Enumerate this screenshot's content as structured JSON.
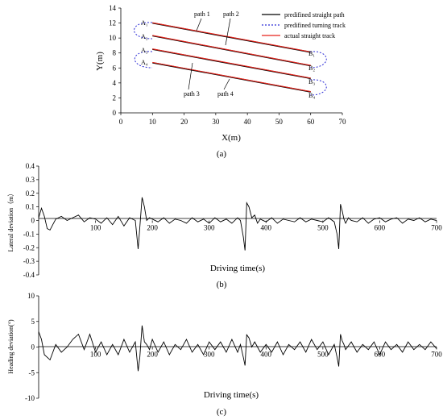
{
  "figure": {
    "captions": [
      "(a)",
      "(b)",
      "(c)"
    ]
  },
  "chart_data": [
    {
      "type": "line",
      "xlabel": "X(m)",
      "ylabel": "Y(m)",
      "xlim": [
        0,
        70
      ],
      "ylim": [
        0,
        14
      ],
      "xticks": [
        "0",
        "10",
        "20",
        "30",
        "40",
        "50",
        "60",
        "70"
      ],
      "yticks": [
        "0",
        "2",
        "4",
        "6",
        "8",
        "10",
        "12",
        "14"
      ],
      "legend": {
        "position": "top-right",
        "entries": [
          {
            "label": "predifined straight path",
            "color": "#000000",
            "style": "solid"
          },
          {
            "label": "predifined turning track",
            "color": "#2b2bd6",
            "style": "dotted"
          },
          {
            "label": "actual straight track",
            "color": "#e8231b",
            "style": "solid"
          }
        ]
      },
      "paths": [
        {
          "start": [
            10,
            12
          ],
          "end": [
            60,
            8.1
          ]
        },
        {
          "start": [
            10,
            10.3
          ],
          "end": [
            60,
            6.3
          ]
        },
        {
          "start": [
            10,
            8.5
          ],
          "end": [
            60,
            4.6
          ]
        },
        {
          "start": [
            10,
            6.7
          ],
          "end": [
            60,
            2.8
          ]
        }
      ],
      "start_labels": [
        "A₁",
        "A₂",
        "A₃",
        "A₄"
      ],
      "end_labels": [
        "B₁",
        "B₂",
        "B₃",
        "B₄"
      ],
      "annotations": [
        "path 1",
        "path 2",
        "path 3",
        "path 4"
      ]
    },
    {
      "type": "line",
      "xlabel": "Driving time(s)",
      "ylabel": "Lateral deviation（m）",
      "xlim": [
        0,
        700
      ],
      "ylim": [
        -0.4,
        0.4
      ],
      "xticks": [
        "100",
        "200",
        "300",
        "400",
        "500",
        "600",
        "700"
      ],
      "yticks": [
        "0.4",
        "0.3",
        "0.2",
        "0.1",
        "0",
        "-0.1",
        "-0.2",
        "-0.3",
        "-0.4"
      ],
      "x": [
        0,
        5,
        10,
        15,
        20,
        25,
        30,
        40,
        50,
        60,
        70,
        80,
        90,
        100,
        110,
        120,
        130,
        140,
        150,
        160,
        170,
        175,
        178,
        182,
        186,
        190,
        195,
        200,
        210,
        220,
        230,
        240,
        250,
        260,
        270,
        280,
        290,
        300,
        310,
        320,
        330,
        340,
        350,
        355,
        360,
        363,
        366,
        370,
        375,
        380,
        385,
        390,
        400,
        410,
        420,
        430,
        440,
        450,
        460,
        470,
        480,
        490,
        500,
        510,
        520,
        525,
        528,
        531,
        534,
        537,
        540,
        545,
        550,
        560,
        570,
        580,
        590,
        600,
        610,
        620,
        630,
        640,
        650,
        660,
        670,
        680,
        690,
        700
      ],
      "y": [
        0.02,
        0.09,
        0.03,
        -0.06,
        -0.07,
        -0.03,
        0.01,
        0.03,
        0.0,
        0.02,
        0.04,
        -0.01,
        0.02,
        0.01,
        -0.02,
        0.02,
        -0.03,
        0.03,
        -0.04,
        0.02,
        0.0,
        -0.21,
        -0.05,
        0.17,
        0.1,
        0.0,
        0.02,
        0.01,
        -0.01,
        0.02,
        -0.02,
        0.01,
        0.0,
        -0.02,
        0.02,
        -0.01,
        0.01,
        -0.02,
        0.02,
        -0.01,
        0.01,
        -0.02,
        0.02,
        0.0,
        -0.12,
        -0.22,
        0.13,
        0.1,
        0.02,
        0.04,
        -0.02,
        0.01,
        -0.01,
        0.02,
        -0.02,
        0.01,
        0.0,
        -0.01,
        0.02,
        -0.01,
        0.01,
        0.0,
        -0.01,
        0.02,
        -0.01,
        -0.1,
        -0.21,
        0.12,
        0.07,
        0.01,
        -0.02,
        0.02,
        0.0,
        -0.01,
        0.02,
        -0.02,
        0.01,
        0.02,
        -0.01,
        0.01,
        0.02,
        -0.02,
        0.01,
        0.0,
        0.02,
        -0.01,
        0.01,
        0.0
      ]
    },
    {
      "type": "line",
      "xlabel": "Driving time(s)",
      "ylabel": "Heading deviation(°)",
      "xlim": [
        0,
        700
      ],
      "ylim": [
        -10,
        10
      ],
      "xticks": [
        "100",
        "200",
        "300",
        "400",
        "500",
        "600",
        "700"
      ],
      "yticks": [
        "10",
        "5",
        "0",
        "-5",
        "-10"
      ],
      "x": [
        0,
        5,
        10,
        20,
        30,
        40,
        50,
        60,
        70,
        80,
        90,
        100,
        110,
        120,
        130,
        140,
        150,
        160,
        170,
        175,
        178,
        182,
        186,
        190,
        195,
        200,
        210,
        220,
        230,
        240,
        250,
        260,
        270,
        280,
        290,
        300,
        310,
        320,
        330,
        340,
        350,
        355,
        360,
        363,
        366,
        370,
        375,
        380,
        390,
        400,
        410,
        420,
        430,
        440,
        450,
        460,
        470,
        480,
        490,
        500,
        510,
        520,
        525,
        528,
        531,
        534,
        537,
        540,
        550,
        560,
        570,
        580,
        590,
        600,
        610,
        620,
        630,
        640,
        650,
        660,
        670,
        680,
        690,
        700
      ],
      "y": [
        3,
        1.5,
        -1.5,
        -2.5,
        0.5,
        -1,
        0,
        1.5,
        2.5,
        -0.5,
        2.5,
        -1,
        1,
        -1.5,
        0.5,
        -1.5,
        1.5,
        -1,
        1,
        -4.7,
        -2,
        4.2,
        1,
        0.5,
        -0.5,
        1.5,
        -1,
        1,
        -1.5,
        0.5,
        -0.5,
        1.5,
        -1,
        0.5,
        -1.5,
        1,
        -0.5,
        1,
        -1,
        1.5,
        -1,
        0.5,
        -2,
        -3.6,
        2.4,
        1.8,
        0,
        1,
        -1,
        0.5,
        -1,
        1,
        -1.5,
        0.5,
        -0.5,
        1,
        -1,
        1.5,
        -0.5,
        1,
        -1.5,
        0.5,
        -2,
        -3.8,
        2.5,
        1.2,
        0.5,
        -0.5,
        1,
        -1,
        0.5,
        -0.5,
        1,
        -1.5,
        1,
        -0.5,
        0.5,
        -1,
        1,
        -0.5,
        0.5,
        -0.5,
        1,
        -0.3
      ]
    }
  ]
}
